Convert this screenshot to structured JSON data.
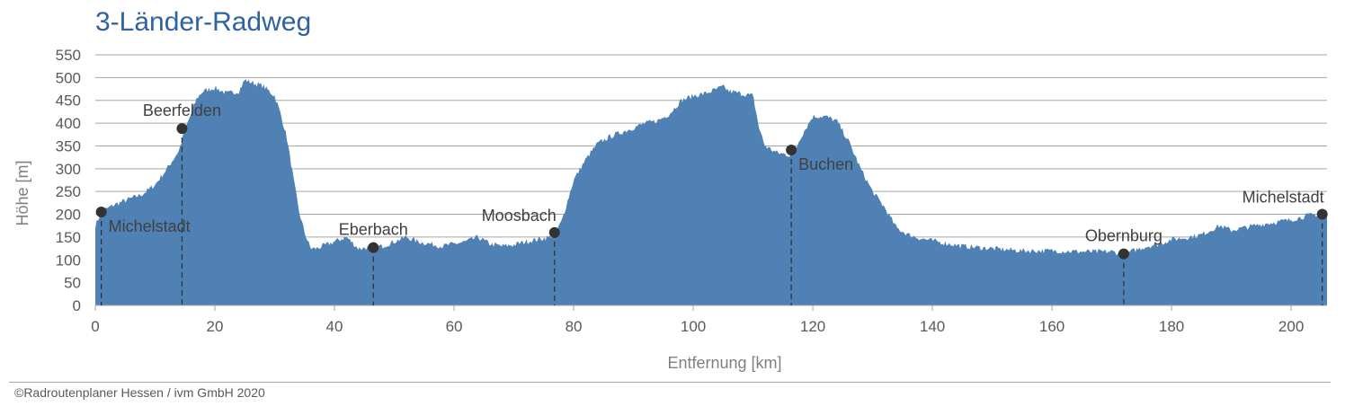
{
  "title": "3-Länder-Radweg",
  "copyright": "©Radroutenplaner Hessen / ivm GmbH 2020",
  "colors": {
    "title": "#2e62a0",
    "area": "#4f81b4",
    "marker": "#333333"
  },
  "chart_data": {
    "type": "area",
    "title": "3-Länder-Radweg",
    "xlabel": "Entfernung [km]",
    "ylabel": "Höhe [m]",
    "xlim": [
      0,
      206
    ],
    "ylim": [
      0,
      550
    ],
    "xticks": [
      0,
      20,
      40,
      60,
      80,
      100,
      120,
      140,
      160,
      180,
      200
    ],
    "yticks": [
      0,
      50,
      100,
      150,
      200,
      250,
      300,
      350,
      400,
      450,
      500,
      550
    ],
    "grid": "horizontal",
    "series": [
      {
        "x": [
          0,
          1,
          3,
          5,
          8,
          10,
          12,
          14,
          15,
          16,
          17,
          18,
          20,
          22,
          24,
          25,
          26,
          28,
          30,
          31,
          32,
          33,
          34,
          35,
          36,
          37,
          38,
          40,
          42,
          44,
          46,
          48,
          50,
          52,
          54,
          56,
          58,
          60,
          62,
          64,
          66,
          68,
          70,
          72,
          74,
          76,
          77,
          78,
          79,
          80,
          82,
          84,
          86,
          88,
          90,
          92,
          94,
          96,
          98,
          100,
          102,
          104,
          105,
          106,
          108,
          110,
          111,
          112,
          114,
          116,
          117,
          118,
          120,
          122,
          124,
          126,
          128,
          130,
          132,
          134,
          136,
          138,
          140,
          142,
          145,
          150,
          155,
          160,
          165,
          170,
          172,
          174,
          176,
          178,
          180,
          182,
          185,
          188,
          190,
          195,
          200,
          203,
          205,
          206
        ],
        "y": [
          175,
          205,
          220,
          230,
          245,
          265,
          300,
          340,
          385,
          420,
          455,
          470,
          478,
          465,
          470,
          495,
          490,
          482,
          460,
          420,
          370,
          290,
          210,
          160,
          125,
          125,
          130,
          140,
          150,
          125,
          128,
          130,
          140,
          150,
          140,
          135,
          130,
          135,
          140,
          150,
          135,
          130,
          133,
          140,
          145,
          150,
          160,
          185,
          230,
          275,
          320,
          355,
          370,
          380,
          390,
          400,
          405,
          420,
          450,
          460,
          465,
          475,
          480,
          470,
          465,
          460,
          390,
          350,
          335,
          330,
          340,
          370,
          415,
          415,
          405,
          360,
          300,
          250,
          215,
          170,
          155,
          147,
          142,
          137,
          130,
          125,
          120,
          120,
          118,
          118,
          112,
          122,
          130,
          135,
          145,
          148,
          155,
          175,
          165,
          178,
          188,
          198,
          200,
          200
        ]
      }
    ],
    "waypoints": [
      {
        "name": "Michelstadt",
        "x": 1,
        "y": 205,
        "label_pos": "below-right"
      },
      {
        "name": "Beerfelden",
        "x": 14.5,
        "y": 388,
        "label_pos": "above"
      },
      {
        "name": "Eberbach",
        "x": 46.5,
        "y": 127,
        "label_pos": "above"
      },
      {
        "name": "Moosbach",
        "x": 76.8,
        "y": 160,
        "label_pos": "above-left"
      },
      {
        "name": "Buchen",
        "x": 116.4,
        "y": 341,
        "label_pos": "below-right"
      },
      {
        "name": "Obernburg",
        "x": 172,
        "y": 113,
        "label_pos": "above"
      },
      {
        "name": "Michelstadt",
        "x": 205.2,
        "y": 200,
        "label_pos": "above-left"
      }
    ]
  }
}
